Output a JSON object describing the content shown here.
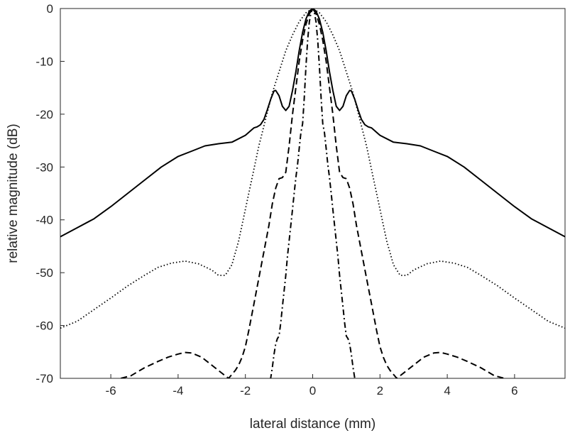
{
  "chart_data": {
    "type": "line",
    "title": "",
    "xlabel": "lateral distance (mm)",
    "ylabel": "relative magnitude (dB)",
    "xlim": [
      -7.5,
      7.5
    ],
    "ylim": [
      -70,
      0
    ],
    "xticks": [
      -6,
      -4,
      -2,
      0,
      2,
      4,
      6
    ],
    "yticks": [
      0,
      -10,
      -20,
      -30,
      -40,
      -50,
      -60,
      -70
    ],
    "grid": false,
    "legend": "none",
    "colors": {
      "line": "#000000",
      "axis": "#262626",
      "background": "#ffffff"
    },
    "series": [
      {
        "style": "solid",
        "x": [
          0,
          0.1,
          0.2,
          0.3,
          0.4,
          0.5,
          0.6,
          0.7,
          0.8,
          0.9,
          1.0,
          1.1,
          1.15,
          1.25,
          1.35,
          1.45,
          1.55,
          1.65,
          1.75,
          2.0,
          2.4,
          2.8,
          3.2,
          3.6,
          4.0,
          4.5,
          5.0,
          5.5,
          6.0,
          6.5,
          7.0,
          7.5
        ],
        "y": [
          0,
          -0.5,
          -2,
          -4.5,
          -8,
          -12,
          -15.5,
          -18.5,
          -19.3,
          -18.5,
          -16.5,
          -15.5,
          -15.6,
          -17.2,
          -19.2,
          -21,
          -22,
          -22.4,
          -22.6,
          -24,
          -25.3,
          -25.6,
          -26,
          -27,
          -28,
          -30,
          -32.5,
          -35,
          -37.5,
          -39.8,
          -41.5,
          -43.2
        ]
      },
      {
        "style": "dotted",
        "x": [
          0,
          0.2,
          0.4,
          0.6,
          0.8,
          1.0,
          1.2,
          1.4,
          1.6,
          1.8,
          2.0,
          2.2,
          2.4,
          2.6,
          2.8,
          3.0,
          3.4,
          3.8,
          4.2,
          4.6,
          5.0,
          5.5,
          6.0,
          6.5,
          7.0,
          7.5
        ],
        "y": [
          0,
          -0.8,
          -2.5,
          -5,
          -8,
          -12,
          -16,
          -21,
          -26,
          -32,
          -38,
          -44,
          -48.5,
          -50.5,
          -50.5,
          -49.5,
          -48.3,
          -47.8,
          -48.2,
          -49,
          -50.5,
          -52.5,
          -54.8,
          -57,
          -59.2,
          -60.5
        ]
      },
      {
        "style": "dashed",
        "x": [
          0,
          0.1,
          0.2,
          0.3,
          0.4,
          0.5,
          0.6,
          0.7,
          0.8,
          0.9,
          1.0,
          1.1,
          1.2,
          1.3,
          1.45,
          1.6,
          1.75,
          1.9,
          2.0,
          2.1,
          2.2,
          2.3,
          2.5,
          2.7,
          3.0,
          3.3,
          3.6,
          3.8,
          4.0,
          4.3,
          4.6,
          5.0,
          5.4,
          5.7
        ],
        "y": [
          0,
          -1,
          -3,
          -6,
          -10,
          -15,
          -20,
          -26,
          -31,
          -32,
          -32.2,
          -34,
          -37,
          -41,
          -46,
          -51,
          -56,
          -61,
          -64,
          -66,
          -67.5,
          -68.5,
          -70,
          -69,
          -67.5,
          -66,
          -65.2,
          -65.1,
          -65.4,
          -66,
          -66.8,
          -68,
          -69.5,
          -70
        ]
      },
      {
        "style": "dashdot",
        "x": [
          0,
          0.05,
          0.1,
          0.15,
          0.2,
          0.25,
          0.3,
          0.35,
          0.4,
          0.45,
          0.5,
          0.55,
          0.6,
          0.65,
          0.7,
          0.75,
          0.8,
          0.85,
          0.9,
          0.95,
          1.0,
          1.05,
          1.1,
          1.15,
          1.2,
          1.25,
          1.3,
          1.4
        ],
        "y": [
          0,
          -0.8,
          -2.5,
          -6,
          -11,
          -17,
          -21.8,
          -23.5,
          -26.5,
          -29.5,
          -32,
          -35,
          -38,
          -41,
          -44,
          -47,
          -50.5,
          -53.5,
          -56.5,
          -59.5,
          -62,
          -62.5,
          -63.5,
          -65.5,
          -68,
          -70,
          -72,
          -75
        ]
      }
    ]
  }
}
